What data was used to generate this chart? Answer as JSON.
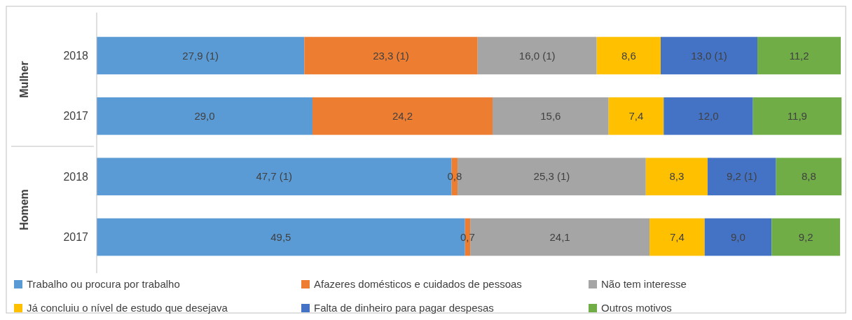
{
  "chart_data": {
    "type": "bar",
    "orientation": "horizontal",
    "stacked": true,
    "categories": [
      "2018",
      "2017",
      "2018",
      "2017"
    ],
    "xlim": [
      0,
      100
    ],
    "tick_labels": "y",
    "legend": "bottom",
    "annotations": [
      "Mulher",
      "Homem"
    ],
    "series": [
      {
        "name": "Trabalho ou procura por trabalho",
        "color": "#5b9bd5",
        "values": [
          27.9,
          29.0,
          47.7,
          49.5
        ],
        "value_labels": [
          "27,9   (1)",
          "29,0",
          "47,7   (1)",
          "49,5"
        ]
      },
      {
        "name": "Afazeres domésticos e cuidados de pessoas",
        "color": "#ed7d31",
        "values": [
          23.3,
          24.2,
          0.8,
          0.7
        ],
        "value_labels": [
          "23,3   (1)",
          "24,2",
          "0,8",
          "0,7"
        ]
      },
      {
        "name": "Não tem interesse",
        "color": "#a5a5a5",
        "values": [
          16.0,
          15.6,
          25.3,
          24.1
        ],
        "value_labels": [
          "16,0  (1)",
          "15,6",
          "25,3   (1)",
          "24,1"
        ]
      },
      {
        "name": "Já concluiu o nível de estudo que desejava",
        "color": "#ffc000",
        "values": [
          8.6,
          7.4,
          8.3,
          7.4
        ],
        "value_labels": [
          "8,6",
          "7,4",
          "8,3",
          "7,4"
        ]
      },
      {
        "name": "Falta de dinheiro para pagar despesas",
        "color": "#4472c4",
        "values": [
          13.0,
          12.0,
          9.2,
          9.0
        ],
        "value_labels": [
          "13,0  (1)",
          "12,0",
          "9,2 (1)",
          "9,0"
        ]
      },
      {
        "name": "Outros motivos",
        "color": "#70ad47",
        "values": [
          11.2,
          11.9,
          8.8,
          9.2
        ],
        "value_labels": [
          "11,2",
          "11,9",
          "8,8",
          "9,2"
        ]
      }
    ]
  }
}
